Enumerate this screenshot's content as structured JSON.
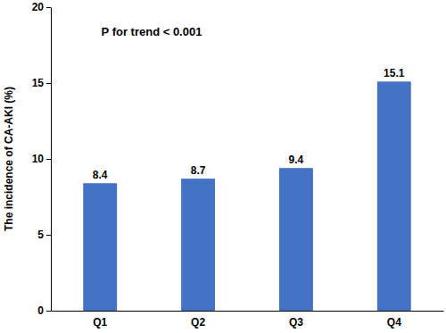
{
  "chart_data": {
    "type": "bar",
    "y_label": "The incidence of CA-AKI (%)",
    "annotations": [
      "P for trend < 0.001"
    ],
    "categories": [
      "Q1",
      "Q2",
      "Q3",
      "Q4"
    ],
    "values": [
      8.4,
      8.7,
      9.4,
      15.1
    ],
    "color": "#4472c4",
    "ylim": [
      0,
      20
    ],
    "yticks": [
      0,
      5,
      10,
      15,
      20
    ],
    "grid": false,
    "data_labels": true
  }
}
